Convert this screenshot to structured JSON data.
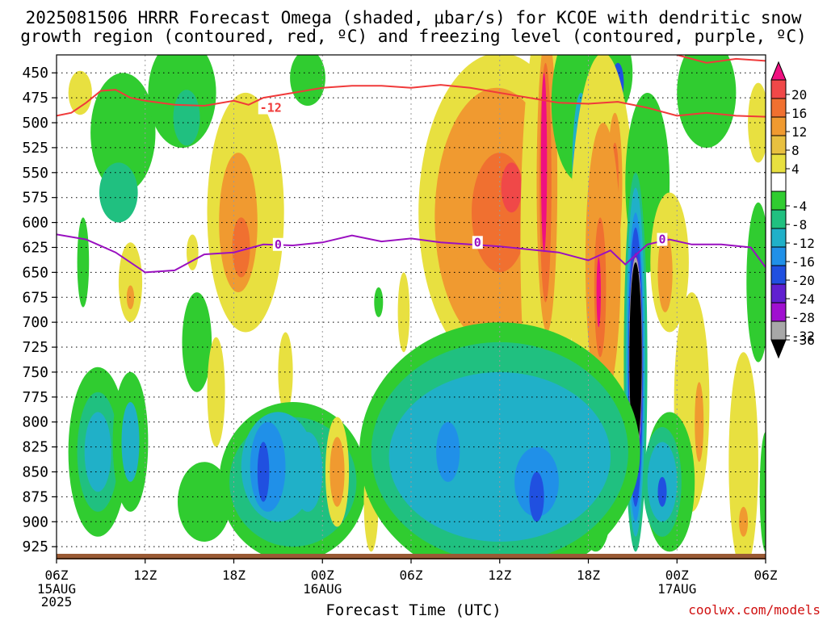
{
  "title_line1": "2025081506 HRRR Forecast Omega (shaded, μbar/s) for KCOE with dendritic snow",
  "title_line2": "growth region (contoured, red, ºC) and freezing level (contoured, purple, ºC)",
  "credit": "coolwx.com/models",
  "chart_data": {
    "type": "heatmap",
    "xlabel": "Forecast Time (UTC)",
    "x_ticks": [
      {
        "hour": 0,
        "label": "06Z",
        "sub": [
          "15AUG",
          "2025"
        ]
      },
      {
        "hour": 6,
        "label": "12Z",
        "sub": []
      },
      {
        "hour": 12,
        "label": "18Z",
        "sub": []
      },
      {
        "hour": 18,
        "label": "00Z",
        "sub": [
          "16AUG"
        ]
      },
      {
        "hour": 24,
        "label": "06Z",
        "sub": []
      },
      {
        "hour": 30,
        "label": "12Z",
        "sub": []
      },
      {
        "hour": 36,
        "label": "18Z",
        "sub": []
      },
      {
        "hour": 42,
        "label": "00Z",
        "sub": [
          "17AUG"
        ]
      },
      {
        "hour": 48,
        "label": "06Z",
        "sub": []
      }
    ],
    "x_range_hours": [
      0,
      48
    ],
    "y_ticks": [
      450,
      475,
      500,
      525,
      550,
      575,
      600,
      625,
      650,
      675,
      700,
      725,
      750,
      775,
      800,
      825,
      850,
      875,
      900,
      925
    ],
    "y_range_mb": [
      432,
      937
    ],
    "colorbar": {
      "labels": [
        "20",
        "16",
        "12",
        "8",
        "4",
        "-4",
        "-8",
        "-12",
        "-16",
        "-20",
        "-24",
        "-28",
        "-32",
        "-36"
      ],
      "colors": [
        "#f01080",
        "#f04848",
        "#f07030",
        "#f09a30",
        "#e8c040",
        "#e8e040",
        "#ffffff",
        "#30cc30",
        "#20c080",
        "#20b0c8",
        "#2090e8",
        "#2050e0",
        "#6020d0",
        "#a010d0",
        "#a8a8a8",
        "#000000"
      ]
    },
    "contour_labels": {
      "dgz": "-12",
      "freezing": "0"
    },
    "omega_cells": [
      {
        "h": 1.6,
        "p": 470,
        "rx": 0.8,
        "ry": 22,
        "v": 5
      },
      {
        "h": 4.5,
        "p": 510,
        "rx": 2.2,
        "ry": 60,
        "v": -6
      },
      {
        "h": 4.2,
        "p": 570,
        "rx": 1.3,
        "ry": 30,
        "v": -8
      },
      {
        "h": 8.5,
        "p": 470,
        "rx": 2.3,
        "ry": 55,
        "v": -7
      },
      {
        "h": 8.8,
        "p": 495,
        "rx": 0.9,
        "ry": 28,
        "v": -11
      },
      {
        "h": 17.0,
        "p": 455,
        "rx": 1.2,
        "ry": 28,
        "v": -6
      },
      {
        "h": 1.8,
        "p": 640,
        "rx": 0.4,
        "ry": 45,
        "v": -6
      },
      {
        "h": 5.0,
        "p": 660,
        "rx": 0.8,
        "ry": 40,
        "v": 5
      },
      {
        "h": 5.0,
        "p": 675,
        "rx": 0.25,
        "ry": 12,
        "v": 9
      },
      {
        "h": 9.5,
        "p": 720,
        "rx": 1.0,
        "ry": 50,
        "v": -5
      },
      {
        "h": 12.8,
        "p": 590,
        "rx": 2.6,
        "ry": 120,
        "v": 5
      },
      {
        "h": 12.3,
        "p": 600,
        "rx": 1.3,
        "ry": 70,
        "v": 10
      },
      {
        "h": 12.5,
        "p": 625,
        "rx": 0.6,
        "ry": 30,
        "v": 14
      },
      {
        "h": 9.2,
        "p": 630,
        "rx": 0.4,
        "ry": 18,
        "v": 5
      },
      {
        "h": 15.5,
        "p": 750,
        "rx": 0.5,
        "ry": 40,
        "v": 5
      },
      {
        "h": 10.8,
        "p": 770,
        "rx": 0.6,
        "ry": 55,
        "v": 5
      },
      {
        "h": 21.8,
        "p": 680,
        "rx": 0.3,
        "ry": 15,
        "v": -6
      },
      {
        "h": 23.5,
        "p": 690,
        "rx": 0.4,
        "ry": 40,
        "v": 5
      },
      {
        "h": 30.0,
        "p": 590,
        "rx": 5.5,
        "ry": 160,
        "v": 5
      },
      {
        "h": 29.8,
        "p": 595,
        "rx": 4.2,
        "ry": 130,
        "v": 8
      },
      {
        "h": 29.8,
        "p": 590,
        "rx": 3.0,
        "ry": 100,
        "v": 11
      },
      {
        "h": 30.0,
        "p": 590,
        "rx": 1.9,
        "ry": 60,
        "v": 14
      },
      {
        "h": 30.8,
        "p": 565,
        "rx": 0.7,
        "ry": 25,
        "v": 17
      },
      {
        "h": 33.2,
        "p": 620,
        "rx": 1.8,
        "ry": 240,
        "v": 5
      },
      {
        "h": 33.2,
        "p": 560,
        "rx": 0.7,
        "ry": 150,
        "v": 10
      },
      {
        "h": 33.1,
        "p": 560,
        "rx": 0.4,
        "ry": 120,
        "v": 15
      },
      {
        "h": 33.0,
        "p": 540,
        "rx": 0.2,
        "ry": 90,
        "v": 21
      },
      {
        "h": 35.5,
        "p": 480,
        "rx": 2.0,
        "ry": 80,
        "v": -6
      },
      {
        "h": 35.8,
        "p": 560,
        "rx": 0.9,
        "ry": 150,
        "v": -7
      },
      {
        "h": 35.5,
        "p": 550,
        "rx": 0.6,
        "ry": 80,
        "v": -12
      },
      {
        "h": 35.2,
        "p": 555,
        "rx": 0.25,
        "ry": 35,
        "v": -21
      },
      {
        "h": 37.8,
        "p": 450,
        "rx": 1.2,
        "ry": 40,
        "v": -7
      },
      {
        "h": 38.0,
        "p": 460,
        "rx": 0.4,
        "ry": 20,
        "v": -20
      },
      {
        "h": 37.0,
        "p": 640,
        "rx": 2.3,
        "ry": 210,
        "v": 5
      },
      {
        "h": 37.8,
        "p": 560,
        "rx": 0.5,
        "ry": 70,
        "v": 9
      },
      {
        "h": 37.8,
        "p": 555,
        "rx": 0.25,
        "ry": 35,
        "v": 15
      },
      {
        "h": 37.0,
        "p": 640,
        "rx": 1.2,
        "ry": 140,
        "v": 9
      },
      {
        "h": 36.8,
        "p": 665,
        "rx": 0.4,
        "ry": 70,
        "v": 15
      },
      {
        "h": 36.7,
        "p": 670,
        "rx": 0.15,
        "ry": 35,
        "v": 20
      },
      {
        "h": 40.0,
        "p": 560,
        "rx": 1.5,
        "ry": 90,
        "v": -6
      },
      {
        "h": 44.0,
        "p": 470,
        "rx": 2.0,
        "ry": 55,
        "v": -7
      },
      {
        "h": 47.5,
        "p": 500,
        "rx": 0.7,
        "ry": 40,
        "v": 5
      },
      {
        "h": 47.5,
        "p": 660,
        "rx": 0.8,
        "ry": 80,
        "v": -6
      },
      {
        "h": 41.5,
        "p": 640,
        "rx": 1.3,
        "ry": 70,
        "v": 5
      },
      {
        "h": 41.2,
        "p": 650,
        "rx": 0.5,
        "ry": 40,
        "v": 8
      },
      {
        "h": 43.0,
        "p": 780,
        "rx": 1.2,
        "ry": 110,
        "v": 5
      },
      {
        "h": 43.5,
        "p": 800,
        "rx": 0.3,
        "ry": 40,
        "v": 11
      },
      {
        "h": 46.5,
        "p": 840,
        "rx": 1.0,
        "ry": 110,
        "v": 5
      },
      {
        "h": 46.5,
        "p": 900,
        "rx": 0.3,
        "ry": 15,
        "v": 9
      },
      {
        "h": 39.2,
        "p": 740,
        "rx": 0.8,
        "ry": 190,
        "v": -8
      },
      {
        "h": 39.2,
        "p": 740,
        "rx": 0.65,
        "ry": 175,
        "v": -13
      },
      {
        "h": 39.2,
        "p": 745,
        "rx": 0.55,
        "ry": 155,
        "v": -17
      },
      {
        "h": 39.2,
        "p": 745,
        "rx": 0.5,
        "ry": 140,
        "v": -22
      },
      {
        "h": 39.2,
        "p": 740,
        "rx": 0.45,
        "ry": 110,
        "v": -26
      },
      {
        "h": 39.2,
        "p": 735,
        "rx": 0.45,
        "ry": 100,
        "v": -33
      },
      {
        "h": 39.2,
        "p": 735,
        "rx": 0.42,
        "ry": 95,
        "v": -37
      },
      {
        "h": 41.5,
        "p": 860,
        "rx": 1.7,
        "ry": 70,
        "v": -5
      },
      {
        "h": 41.0,
        "p": 860,
        "rx": 1.3,
        "ry": 55,
        "v": -10
      },
      {
        "h": 41.0,
        "p": 860,
        "rx": 1.0,
        "ry": 40,
        "v": -14
      },
      {
        "h": 41.0,
        "p": 870,
        "rx": 0.3,
        "ry": 15,
        "v": -22
      },
      {
        "h": 36.5,
        "p": 890,
        "rx": 1.0,
        "ry": 40,
        "v": -6
      },
      {
        "h": 48.0,
        "p": 870,
        "rx": 0.4,
        "ry": 60,
        "v": -6
      },
      {
        "h": 2.8,
        "p": 830,
        "rx": 2.0,
        "ry": 85,
        "v": -6
      },
      {
        "h": 2.8,
        "p": 830,
        "rx": 1.4,
        "ry": 60,
        "v": -10
      },
      {
        "h": 2.8,
        "p": 830,
        "rx": 0.9,
        "ry": 40,
        "v": -14
      },
      {
        "h": 5.0,
        "p": 820,
        "rx": 1.2,
        "ry": 70,
        "v": -7
      },
      {
        "h": 5.0,
        "p": 820,
        "rx": 0.6,
        "ry": 40,
        "v": -12
      },
      {
        "h": 10.0,
        "p": 880,
        "rx": 1.8,
        "ry": 40,
        "v": -6
      },
      {
        "h": 16.0,
        "p": 860,
        "rx": 5.0,
        "ry": 80,
        "v": -6
      },
      {
        "h": 16.0,
        "p": 860,
        "rx": 4.3,
        "ry": 65,
        "v": -9
      },
      {
        "h": 15.0,
        "p": 845,
        "rx": 2.5,
        "ry": 55,
        "v": -13
      },
      {
        "h": 14.3,
        "p": 845,
        "rx": 1.2,
        "ry": 45,
        "v": -17
      },
      {
        "h": 14.0,
        "p": 850,
        "rx": 0.4,
        "ry": 30,
        "v": -22
      },
      {
        "h": 17.0,
        "p": 850,
        "rx": 1.0,
        "ry": 40,
        "v": -15
      },
      {
        "h": 19.0,
        "p": 850,
        "rx": 0.8,
        "ry": 55,
        "v": 5
      },
      {
        "h": 19.0,
        "p": 850,
        "rx": 0.5,
        "ry": 35,
        "v": 9
      },
      {
        "h": 21.3,
        "p": 880,
        "rx": 0.5,
        "ry": 50,
        "v": 5
      },
      {
        "h": 30.0,
        "p": 830,
        "rx": 9.5,
        "ry": 130,
        "v": -5
      },
      {
        "h": 30.0,
        "p": 830,
        "rx": 8.7,
        "ry": 110,
        "v": -9
      },
      {
        "h": 30.0,
        "p": 835,
        "rx": 7.5,
        "ry": 85,
        "v": -13
      },
      {
        "h": 32.5,
        "p": 860,
        "rx": 1.5,
        "ry": 35,
        "v": -17
      },
      {
        "h": 32.5,
        "p": 875,
        "rx": 0.5,
        "ry": 25,
        "v": -23
      },
      {
        "h": 26.5,
        "p": 830,
        "rx": 0.8,
        "ry": 30,
        "v": -17
      }
    ],
    "dgz_line_minus12": [
      [
        0,
        493
      ],
      [
        1,
        490
      ],
      [
        2,
        480
      ],
      [
        3,
        468
      ],
      [
        4,
        467
      ],
      [
        5,
        475
      ],
      [
        6,
        478
      ],
      [
        7,
        480
      ],
      [
        8,
        482
      ],
      [
        10,
        483
      ],
      [
        12,
        478
      ],
      [
        13,
        482
      ],
      [
        14,
        475
      ],
      [
        16,
        470
      ],
      [
        18,
        465
      ],
      [
        20,
        463
      ],
      [
        22,
        463
      ],
      [
        24,
        465
      ],
      [
        26,
        462
      ],
      [
        28,
        465
      ],
      [
        30,
        470
      ],
      [
        32,
        475
      ],
      [
        34,
        480
      ],
      [
        36,
        481
      ],
      [
        38,
        479
      ],
      [
        40,
        485
      ],
      [
        42,
        493
      ],
      [
        44,
        490
      ],
      [
        46,
        493
      ],
      [
        48,
        494
      ]
    ],
    "dgz_top_line": [
      [
        42,
        432
      ],
      [
        44,
        440
      ],
      [
        46,
        436
      ],
      [
        48,
        438
      ]
    ],
    "freezing_line_0": [
      [
        0,
        612
      ],
      [
        2,
        617
      ],
      [
        4,
        630
      ],
      [
        6,
        650
      ],
      [
        8,
        648
      ],
      [
        10,
        632
      ],
      [
        12,
        630
      ],
      [
        14,
        622
      ],
      [
        16,
        623
      ],
      [
        18,
        620
      ],
      [
        20,
        613
      ],
      [
        22,
        619
      ],
      [
        24,
        616
      ],
      [
        26,
        620
      ],
      [
        28,
        622
      ],
      [
        30,
        624
      ],
      [
        32,
        627
      ],
      [
        34,
        630
      ],
      [
        36,
        638
      ],
      [
        37.5,
        628
      ],
      [
        38.5,
        642
      ],
      [
        40,
        622
      ],
      [
        41.5,
        617
      ],
      [
        43,
        622
      ],
      [
        45,
        622
      ],
      [
        47,
        625
      ],
      [
        48,
        645
      ]
    ]
  }
}
